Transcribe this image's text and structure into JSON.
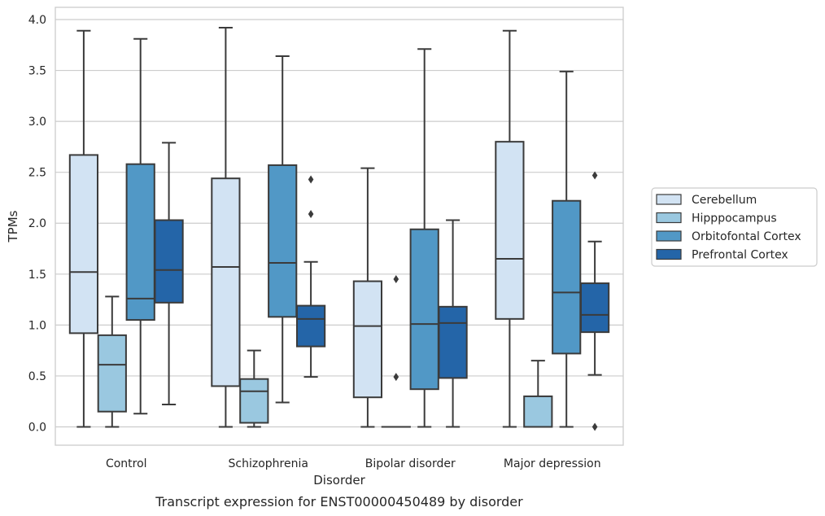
{
  "chart_data": {
    "type": "boxplot",
    "caption": "Transcript expression for ENST00000450489 by disorder",
    "xlabel": "Disorder",
    "ylabel": "TPMs",
    "ylim": [
      -0.18,
      4.12
    ],
    "yticks": [
      "0.0",
      "0.5",
      "1.0",
      "1.5",
      "2.0",
      "2.5",
      "3.0",
      "3.5",
      "4.0"
    ],
    "grid": "horizontal",
    "legend_position": "right",
    "categories": [
      "Control",
      "Schizophrenia",
      "Bipolar disorder",
      "Major depression"
    ],
    "series": [
      {
        "name": "Cerebellum",
        "color": "#d2e3f3",
        "boxes": [
          {
            "whislo": 0.0,
            "q1": 0.92,
            "med": 1.52,
            "q3": 2.67,
            "whishi": 3.89,
            "fliers": []
          },
          {
            "whislo": 0.0,
            "q1": 0.4,
            "med": 1.57,
            "q3": 2.44,
            "whishi": 3.92,
            "fliers": []
          },
          {
            "whislo": 0.0,
            "q1": 0.29,
            "med": 0.99,
            "q3": 1.43,
            "whishi": 2.54,
            "fliers": []
          },
          {
            "whislo": 0.0,
            "q1": 1.06,
            "med": 1.65,
            "q3": 2.8,
            "whishi": 3.89,
            "fliers": []
          }
        ]
      },
      {
        "name": "Hipppocampus",
        "color": "#9ac8e0",
        "boxes": [
          {
            "whislo": 0.0,
            "q1": 0.15,
            "med": 0.61,
            "q3": 0.9,
            "whishi": 1.28,
            "fliers": []
          },
          {
            "whislo": 0.0,
            "q1": 0.04,
            "med": 0.35,
            "q3": 0.47,
            "whishi": 0.75,
            "fliers": []
          },
          {
            "whislo": 0.0,
            "q1": 0.0,
            "med": 0.0,
            "q3": 0.0,
            "whishi": 0.0,
            "fliers": [
              0.49,
              1.45
            ]
          },
          {
            "whislo": 0.0,
            "q1": 0.0,
            "med": 0.0,
            "q3": 0.3,
            "whishi": 0.65,
            "fliers": []
          }
        ]
      },
      {
        "name": "Orbitofontal Cortex",
        "color": "#5198c6",
        "boxes": [
          {
            "whislo": 0.13,
            "q1": 1.05,
            "med": 1.26,
            "q3": 2.58,
            "whishi": 3.81,
            "fliers": []
          },
          {
            "whislo": 0.24,
            "q1": 1.08,
            "med": 1.61,
            "q3": 2.57,
            "whishi": 3.64,
            "fliers": []
          },
          {
            "whislo": 0.0,
            "q1": 0.37,
            "med": 1.01,
            "q3": 1.94,
            "whishi": 3.71,
            "fliers": []
          },
          {
            "whislo": 0.0,
            "q1": 0.72,
            "med": 1.32,
            "q3": 2.22,
            "whishi": 3.49,
            "fliers": []
          }
        ]
      },
      {
        "name": "Prefrontal Cortex",
        "color": "#2465a8",
        "boxes": [
          {
            "whislo": 0.22,
            "q1": 1.22,
            "med": 1.54,
            "q3": 2.03,
            "whishi": 2.79,
            "fliers": []
          },
          {
            "whislo": 0.49,
            "q1": 0.79,
            "med": 1.06,
            "q3": 1.19,
            "whishi": 1.62,
            "fliers": [
              2.09,
              2.43
            ]
          },
          {
            "whislo": 0.0,
            "q1": 0.48,
            "med": 1.02,
            "q3": 1.18,
            "whishi": 2.03,
            "fliers": []
          },
          {
            "whislo": 0.51,
            "q1": 0.93,
            "med": 1.1,
            "q3": 1.41,
            "whishi": 1.82,
            "fliers": [
              0.0,
              2.47
            ]
          }
        ]
      }
    ]
  }
}
